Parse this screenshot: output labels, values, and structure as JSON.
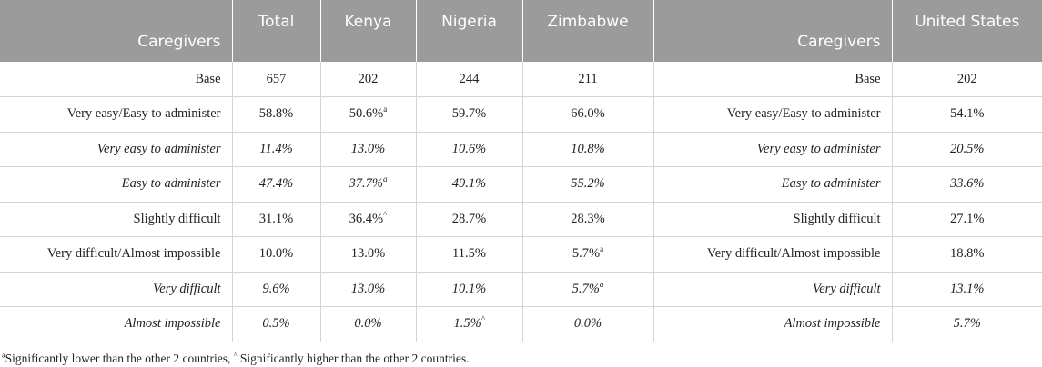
{
  "table": {
    "headers": {
      "label_left": "Caregivers",
      "total": "Total",
      "kenya": "Kenya",
      "nigeria": "Nigeria",
      "zimbabwe": "Zimbabwe",
      "label_right": "Caregivers",
      "us": "United States"
    },
    "rows": [
      {
        "style": "normal",
        "label": "Base",
        "total": {
          "value": "657",
          "mark": ""
        },
        "kenya": {
          "value": "202",
          "mark": ""
        },
        "nigeria": {
          "value": "244",
          "mark": ""
        },
        "zimbabwe": {
          "value": "211",
          "mark": ""
        },
        "label_us": "Base",
        "us": {
          "value": "202",
          "mark": ""
        }
      },
      {
        "style": "normal",
        "label": "Very easy/Easy to administer",
        "total": {
          "value": "58.8%",
          "mark": ""
        },
        "kenya": {
          "value": "50.6%",
          "mark": "a"
        },
        "nigeria": {
          "value": "59.7%",
          "mark": ""
        },
        "zimbabwe": {
          "value": "66.0%",
          "mark": ""
        },
        "label_us": "Very easy/Easy to administer",
        "us": {
          "value": "54.1%",
          "mark": ""
        }
      },
      {
        "style": "italic",
        "label": "Very easy to administer",
        "total": {
          "value": "11.4%",
          "mark": ""
        },
        "kenya": {
          "value": "13.0%",
          "mark": ""
        },
        "nigeria": {
          "value": "10.6%",
          "mark": ""
        },
        "zimbabwe": {
          "value": "10.8%",
          "mark": ""
        },
        "label_us": "Very easy to administer",
        "us": {
          "value": "20.5%",
          "mark": ""
        }
      },
      {
        "style": "italic",
        "label": "Easy to administer",
        "total": {
          "value": "47.4%",
          "mark": ""
        },
        "kenya": {
          "value": "37.7%",
          "mark": "a"
        },
        "nigeria": {
          "value": "49.1%",
          "mark": ""
        },
        "zimbabwe": {
          "value": "55.2%",
          "mark": ""
        },
        "label_us": "Easy to administer",
        "us": {
          "value": "33.6%",
          "mark": ""
        }
      },
      {
        "style": "normal",
        "label": "Slightly difficult",
        "total": {
          "value": "31.1%",
          "mark": ""
        },
        "kenya": {
          "value": "36.4%",
          "mark": "^"
        },
        "nigeria": {
          "value": "28.7%",
          "mark": ""
        },
        "zimbabwe": {
          "value": "28.3%",
          "mark": ""
        },
        "label_us": "Slightly difficult",
        "us": {
          "value": "27.1%",
          "mark": ""
        }
      },
      {
        "style": "normal",
        "label": "Very difficult/Almost impossible",
        "total": {
          "value": "10.0%",
          "mark": ""
        },
        "kenya": {
          "value": "13.0%",
          "mark": ""
        },
        "nigeria": {
          "value": "11.5%",
          "mark": ""
        },
        "zimbabwe": {
          "value": "5.7%",
          "mark": "a"
        },
        "label_us": "Very difficult/Almost impossible",
        "us": {
          "value": "18.8%",
          "mark": ""
        }
      },
      {
        "style": "italic",
        "label": "Very difficult",
        "total": {
          "value": "9.6%",
          "mark": ""
        },
        "kenya": {
          "value": "13.0%",
          "mark": ""
        },
        "nigeria": {
          "value": "10.1%",
          "mark": ""
        },
        "zimbabwe": {
          "value": "5.7%",
          "mark": "a"
        },
        "label_us": "Very difficult",
        "us": {
          "value": "13.1%",
          "mark": ""
        }
      },
      {
        "style": "italic",
        "label": "Almost impossible",
        "total": {
          "value": "0.5%",
          "mark": ""
        },
        "kenya": {
          "value": "0.0%",
          "mark": ""
        },
        "nigeria": {
          "value": "1.5%",
          "mark": "^"
        },
        "zimbabwe": {
          "value": "0.0%",
          "mark": ""
        },
        "label_us": "Almost impossible",
        "us": {
          "value": "5.7%",
          "mark": ""
        }
      }
    ]
  },
  "footnote": {
    "mark_a": "a",
    "text_a": "Significantly lower than the other 2 countries, ",
    "mark_b": "^",
    "text_b": " Significantly higher than the other 2 countries."
  },
  "colors": {
    "header_bg": "#9b9b9b",
    "header_text": "#ffffff",
    "grid_line": "#d4d4d4",
    "body_text": "#222222"
  }
}
